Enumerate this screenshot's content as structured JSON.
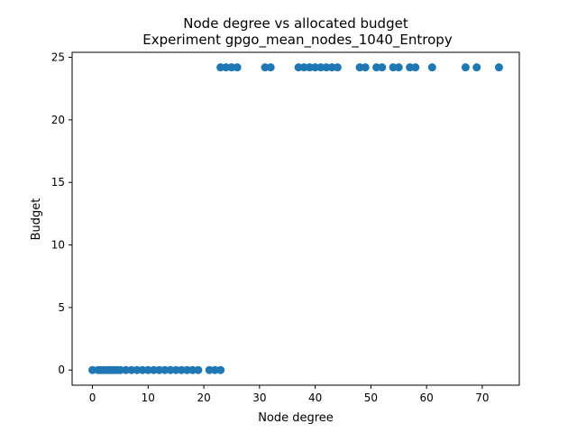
{
  "chart_data": {
    "type": "scatter",
    "title": "Node degree vs allocated budget",
    "subtitle": "Experiment gpgo_mean_nodes_1040_Entropy",
    "xlabel": "Node degree",
    "ylabel": "Budget",
    "xlim": [
      -3.65,
      76.65
    ],
    "ylim": [
      -1.21,
      25.4
    ],
    "xticks": [
      0,
      10,
      20,
      30,
      40,
      50,
      60,
      70
    ],
    "yticks": [
      0,
      5,
      10,
      15,
      20,
      25
    ],
    "grid": false,
    "marker_color": "#1f77b4",
    "series": [
      {
        "x": [
          0,
          1,
          1.5,
          2,
          2.5,
          3,
          3.5,
          4,
          4.5,
          5,
          6,
          7,
          8,
          9,
          10,
          11,
          12,
          13,
          14,
          15,
          16,
          17,
          18,
          19,
          21,
          22,
          23,
          23,
          24,
          25,
          26,
          31,
          32,
          37,
          38,
          39,
          40,
          41,
          42,
          43,
          44,
          48,
          49,
          51,
          52,
          54,
          55,
          57,
          58,
          61,
          67,
          69,
          73
        ],
        "y": [
          0,
          0,
          0,
          0,
          0,
          0,
          0,
          0,
          0,
          0,
          0,
          0,
          0,
          0,
          0,
          0,
          0,
          0,
          0,
          0,
          0,
          0,
          0,
          0,
          0,
          0,
          0,
          24.2,
          24.2,
          24.2,
          24.2,
          24.2,
          24.2,
          24.2,
          24.2,
          24.2,
          24.2,
          24.2,
          24.2,
          24.2,
          24.2,
          24.2,
          24.2,
          24.2,
          24.2,
          24.2,
          24.2,
          24.2,
          24.2,
          24.2,
          24.2,
          24.2,
          24.2
        ]
      }
    ]
  }
}
